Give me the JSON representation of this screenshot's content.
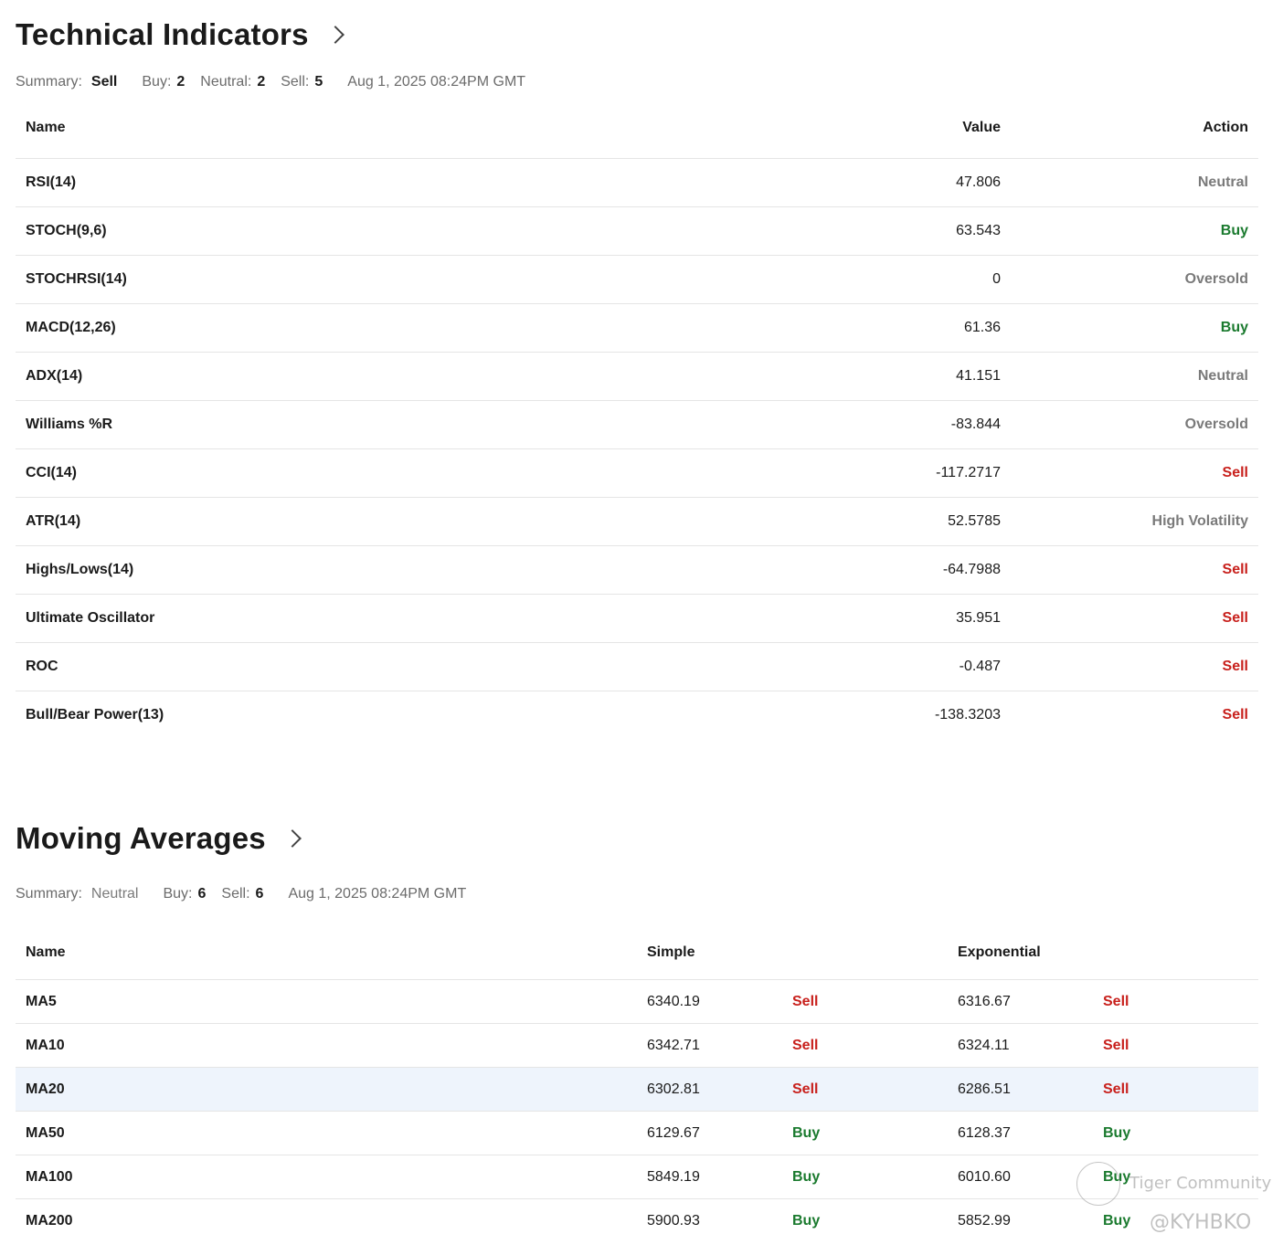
{
  "technical": {
    "title": "Technical Indicators",
    "summary": {
      "label": "Summary:",
      "value": "Sell",
      "buy_label": "Buy:",
      "buy": "2",
      "neutral_label": "Neutral:",
      "neutral": "2",
      "sell_label": "Sell:",
      "sell": "5",
      "timestamp": "Aug 1, 2025 08:24PM GMT"
    },
    "headers": {
      "name": "Name",
      "value": "Value",
      "action": "Action"
    },
    "rows": [
      {
        "name": "RSI(14)",
        "value": "47.806",
        "action": "Neutral",
        "type": "neutral"
      },
      {
        "name": "STOCH(9,6)",
        "value": "63.543",
        "action": "Buy",
        "type": "buy"
      },
      {
        "name": "STOCHRSI(14)",
        "value": "0",
        "action": "Oversold",
        "type": "neutral"
      },
      {
        "name": "MACD(12,26)",
        "value": "61.36",
        "action": "Buy",
        "type": "buy"
      },
      {
        "name": "ADX(14)",
        "value": "41.151",
        "action": "Neutral",
        "type": "neutral"
      },
      {
        "name": "Williams %R",
        "value": "-83.844",
        "action": "Oversold",
        "type": "neutral"
      },
      {
        "name": "CCI(14)",
        "value": "-117.2717",
        "action": "Sell",
        "type": "sell"
      },
      {
        "name": "ATR(14)",
        "value": "52.5785",
        "action": "High Volatility",
        "type": "neutral"
      },
      {
        "name": "Highs/Lows(14)",
        "value": "-64.7988",
        "action": "Sell",
        "type": "sell"
      },
      {
        "name": "Ultimate Oscillator",
        "value": "35.951",
        "action": "Sell",
        "type": "sell"
      },
      {
        "name": "ROC",
        "value": "-0.487",
        "action": "Sell",
        "type": "sell"
      },
      {
        "name": "Bull/Bear Power(13)",
        "value": "-138.3203",
        "action": "Sell",
        "type": "sell"
      }
    ]
  },
  "moving": {
    "title": "Moving Averages",
    "summary": {
      "label": "Summary:",
      "value": "Neutral",
      "buy_label": "Buy:",
      "buy": "6",
      "sell_label": "Sell:",
      "sell": "6",
      "timestamp": "Aug 1, 2025 08:24PM GMT"
    },
    "headers": {
      "name": "Name",
      "simple": "Simple",
      "exponential": "Exponential"
    },
    "rows": [
      {
        "name": "MA5",
        "simple": "6340.19",
        "simple_action": "Sell",
        "simple_type": "sell",
        "exp": "6316.67",
        "exp_action": "Sell",
        "exp_type": "sell"
      },
      {
        "name": "MA10",
        "simple": "6342.71",
        "simple_action": "Sell",
        "simple_type": "sell",
        "exp": "6324.11",
        "exp_action": "Sell",
        "exp_type": "sell"
      },
      {
        "name": "MA20",
        "simple": "6302.81",
        "simple_action": "Sell",
        "simple_type": "sell",
        "exp": "6286.51",
        "exp_action": "Sell",
        "exp_type": "sell",
        "highlight": true
      },
      {
        "name": "MA50",
        "simple": "6129.67",
        "simple_action": "Buy",
        "simple_type": "buy",
        "exp": "6128.37",
        "exp_action": "Buy",
        "exp_type": "buy"
      },
      {
        "name": "MA100",
        "simple": "5849.19",
        "simple_action": "Buy",
        "simple_type": "buy",
        "exp": "6010.60",
        "exp_action": "Buy",
        "exp_type": "buy"
      },
      {
        "name": "MA200",
        "simple": "5900.93",
        "simple_action": "Buy",
        "simple_type": "buy",
        "exp": "5852.99",
        "exp_action": "Buy",
        "exp_type": "buy"
      }
    ]
  },
  "watermark": {
    "brand": "Tiger Community",
    "handle": "@KYHBKO"
  },
  "colors": {
    "buy": "#1a7a2e",
    "sell": "#c8201c",
    "neutral": "#7a7a7a",
    "highlight": "#eef4fc"
  }
}
